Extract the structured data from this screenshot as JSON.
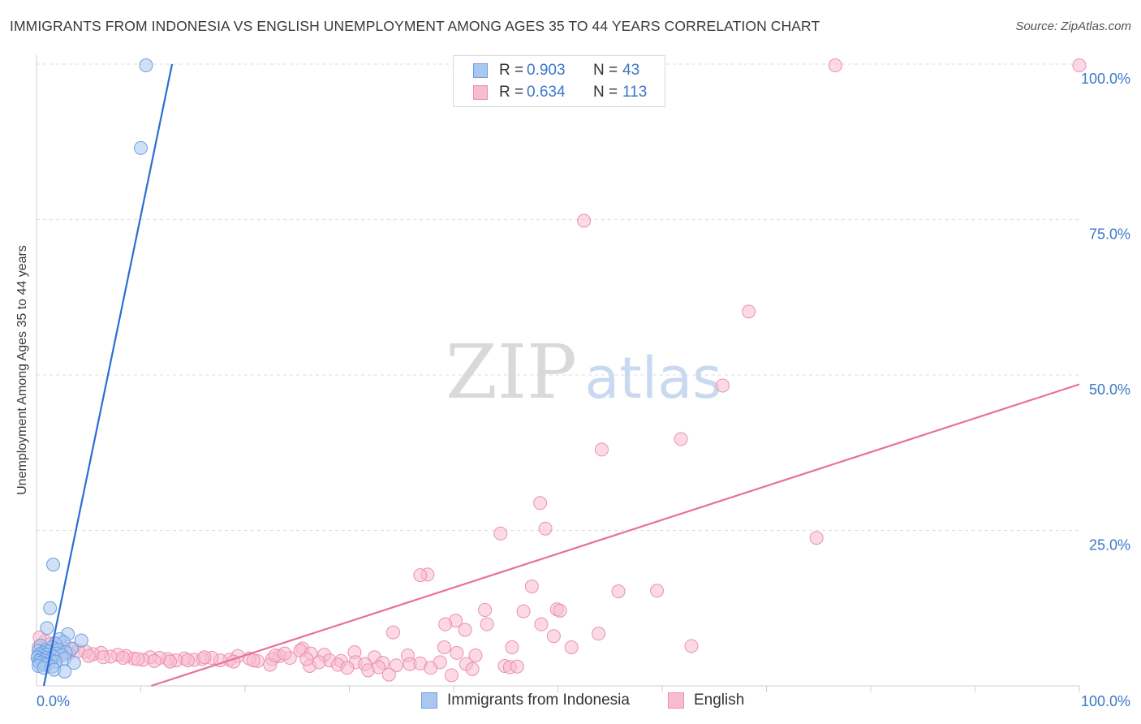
{
  "header": {
    "title": "IMMIGRANTS FROM INDONESIA VS ENGLISH UNEMPLOYMENT AMONG AGES 35 TO 44 YEARS CORRELATION CHART",
    "source": "Source: ZipAtlas.com"
  },
  "watermark": {
    "zip": "ZIP",
    "atlas": "atlas"
  },
  "legend": {
    "rows": [
      {
        "r_label": "R =",
        "r_value": "0.903",
        "n_label": "N =",
        "n_value": "43"
      },
      {
        "r_label": "R =",
        "r_value": "0.634",
        "n_label": "N =",
        "n_value": "113"
      }
    ]
  },
  "colors": {
    "blue_fill": "#a9c8f0",
    "blue_stroke": "#6c9ee0",
    "blue_line": "#2a6fd0",
    "pink_fill": "#f8bcd0",
    "pink_stroke": "#ec8fb0",
    "pink_line": "#e8709a",
    "tick_text": "#3a78c9",
    "grid": "#dddddd"
  },
  "chart_data": {
    "type": "scatter",
    "title": "IMMIGRANTS FROM INDONESIA VS ENGLISH UNEMPLOYMENT AMONG AGES 35 TO 44 YEARS CORRELATION CHART",
    "xlabel": "",
    "ylabel": "Unemployment Among Ages 35 to 44 years",
    "xlim": [
      0,
      100
    ],
    "ylim": [
      0,
      100
    ],
    "x_tick_labels": [
      "0.0%",
      "100.0%"
    ],
    "y_ticks": [
      {
        "value": 25,
        "label": "25.0%"
      },
      {
        "value": 50,
        "label": "50.0%"
      },
      {
        "value": 75,
        "label": "75.0%"
      },
      {
        "value": 100,
        "label": "100.0%"
      }
    ],
    "series": [
      {
        "name": "Immigrants from Indonesia",
        "trend": {
          "x1": 0.7,
          "y1": 0,
          "x2": 13,
          "y2": 100
        },
        "points": [
          [
            10.5,
            99.8
          ],
          [
            10,
            86.5
          ],
          [
            1.6,
            19.5
          ],
          [
            1.3,
            12.5
          ],
          [
            1,
            9.3
          ],
          [
            3,
            8.3
          ],
          [
            2.2,
            7.5
          ],
          [
            4.3,
            7.3
          ],
          [
            2.6,
            7
          ],
          [
            1.8,
            6.8
          ],
          [
            0.4,
            6.5
          ],
          [
            1.5,
            6.2
          ],
          [
            3.4,
            6
          ],
          [
            2.1,
            5.8
          ],
          [
            0.8,
            5.7
          ],
          [
            0.2,
            5.6
          ],
          [
            1.2,
            5.5
          ],
          [
            2.8,
            5.4
          ],
          [
            0.6,
            5.3
          ],
          [
            1.9,
            5.2
          ],
          [
            0.3,
            5.1
          ],
          [
            1,
            5
          ],
          [
            2.4,
            4.9
          ],
          [
            0.5,
            4.8
          ],
          [
            1.6,
            4.7
          ],
          [
            0.1,
            4.6
          ],
          [
            0.9,
            4.5
          ],
          [
            2.7,
            4.4
          ],
          [
            0.4,
            4.3
          ],
          [
            1.3,
            4.2
          ],
          [
            0.7,
            4.1
          ],
          [
            0.2,
            4
          ],
          [
            1.8,
            3.9
          ],
          [
            0.5,
            3.8
          ],
          [
            3.6,
            3.7
          ],
          [
            0.3,
            3.6
          ],
          [
            1.1,
            3.5
          ],
          [
            0.8,
            3.4
          ],
          [
            0.2,
            3.2
          ],
          [
            1.5,
            3.1
          ],
          [
            0.7,
            2.9
          ],
          [
            1.7,
            2.6
          ],
          [
            2.7,
            2.3
          ]
        ]
      },
      {
        "name": "English",
        "trend": {
          "x1": 11,
          "y1": 0,
          "x2": 100,
          "y2": 48.5
        },
        "points": [
          [
            76.6,
            99.8
          ],
          [
            100,
            99.8
          ],
          [
            52.5,
            74.8
          ],
          [
            68.3,
            60.2
          ],
          [
            65.8,
            48.3
          ],
          [
            54.2,
            38
          ],
          [
            61.8,
            39.7
          ],
          [
            48.3,
            29.4
          ],
          [
            74.8,
            23.8
          ],
          [
            48.8,
            25.3
          ],
          [
            44.5,
            24.5
          ],
          [
            37.5,
            17.9
          ],
          [
            36.8,
            17.8
          ],
          [
            47.5,
            16
          ],
          [
            55.8,
            15.2
          ],
          [
            59.5,
            15.3
          ],
          [
            43,
            12.2
          ],
          [
            46.7,
            12
          ],
          [
            49.9,
            12.3
          ],
          [
            50.2,
            12.1
          ],
          [
            40.2,
            10.5
          ],
          [
            39.2,
            9.9
          ],
          [
            43.2,
            9.9
          ],
          [
            48.4,
            9.9
          ],
          [
            41.1,
            9
          ],
          [
            34.2,
            8.6
          ],
          [
            53.9,
            8.4
          ],
          [
            49.6,
            8
          ],
          [
            39.1,
            6.2
          ],
          [
            45.6,
            6.2
          ],
          [
            51.3,
            6.2
          ],
          [
            62.8,
            6.4
          ],
          [
            40.3,
            5.3
          ],
          [
            42.1,
            4.9
          ],
          [
            35.6,
            4.9
          ],
          [
            25.5,
            6
          ],
          [
            25.3,
            5.7
          ],
          [
            30.5,
            5.4
          ],
          [
            26.3,
            5.2
          ],
          [
            27.6,
            5
          ],
          [
            32.4,
            4.6
          ],
          [
            23.3,
            4.8
          ],
          [
            24.3,
            4.5
          ],
          [
            22.6,
            4.3
          ],
          [
            28.1,
            4.1
          ],
          [
            29.2,
            4
          ],
          [
            30.6,
            3.8
          ],
          [
            31.5,
            3.5
          ],
          [
            33.2,
            3.7
          ],
          [
            34.5,
            3.3
          ],
          [
            35.8,
            3.5
          ],
          [
            36.8,
            3.6
          ],
          [
            37.8,
            2.9
          ],
          [
            38.7,
            3.8
          ],
          [
            41.2,
            3.5
          ],
          [
            44.9,
            3.2
          ],
          [
            45.4,
            3
          ],
          [
            46.1,
            3.1
          ],
          [
            31.8,
            2.5
          ],
          [
            32.8,
            3
          ],
          [
            26.2,
            3.2
          ],
          [
            28.9,
            3.4
          ],
          [
            27.1,
            3.8
          ],
          [
            22.4,
            3.4
          ],
          [
            21.2,
            4
          ],
          [
            20.4,
            4.4
          ],
          [
            19.3,
            4.8
          ],
          [
            18.5,
            4.2
          ],
          [
            17.6,
            4.1
          ],
          [
            16.8,
            4.5
          ],
          [
            15.9,
            4.3
          ],
          [
            15.1,
            4.2
          ],
          [
            14.2,
            4.4
          ],
          [
            13.4,
            4.1
          ],
          [
            12.6,
            4.3
          ],
          [
            11.8,
            4.5
          ],
          [
            10.9,
            4.6
          ],
          [
            10.2,
            4.2
          ],
          [
            9.3,
            4.4
          ],
          [
            8.6,
            4.8
          ],
          [
            7.8,
            5
          ],
          [
            7.1,
            4.7
          ],
          [
            6.2,
            5.3
          ],
          [
            5.4,
            5.1
          ],
          [
            4.7,
            5.5
          ],
          [
            4,
            5.6
          ],
          [
            3.3,
            5.9
          ],
          [
            2.6,
            6.1
          ],
          [
            2,
            6.4
          ],
          [
            1.4,
            6.8
          ],
          [
            0.8,
            7.2
          ],
          [
            0.3,
            7.8
          ],
          [
            0.2,
            6.2
          ],
          [
            1,
            5.5
          ],
          [
            2.2,
            5.1
          ],
          [
            3.1,
            5.2
          ],
          [
            5,
            4.8
          ],
          [
            6.4,
            4.6
          ],
          [
            8.3,
            4.5
          ],
          [
            9.7,
            4.3
          ],
          [
            11.3,
            4
          ],
          [
            12.8,
            3.9
          ],
          [
            14.5,
            4.1
          ],
          [
            16.1,
            4.6
          ],
          [
            18.9,
            3.9
          ],
          [
            20.8,
            4.1
          ],
          [
            22.9,
            4.9
          ],
          [
            23.8,
            5.2
          ],
          [
            25.9,
            4.3
          ],
          [
            29.8,
            2.9
          ],
          [
            33.8,
            1.8
          ],
          [
            39.8,
            1.7
          ],
          [
            41.8,
            2.7
          ]
        ]
      }
    ]
  }
}
